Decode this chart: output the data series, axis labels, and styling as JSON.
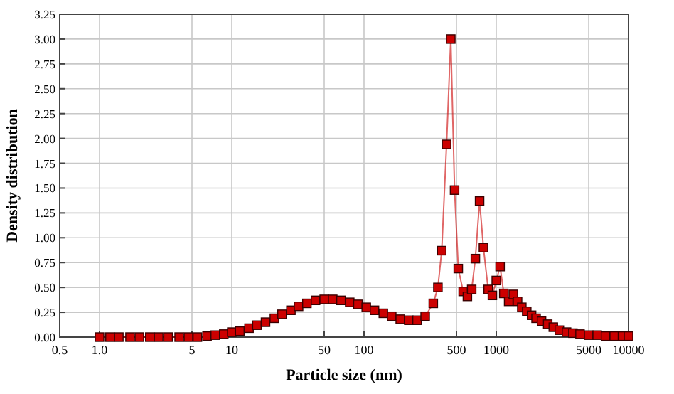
{
  "chart_data": {
    "type": "line",
    "xlabel": "Particle size (nm)",
    "ylabel": "Density distribution",
    "log": "x",
    "grid": true,
    "marker": "square",
    "line_style": "solid",
    "xlim": [
      0.5,
      10000
    ],
    "ylim": [
      0,
      3.25
    ],
    "xticks": [
      0.5,
      {
        "value": 1,
        "label": "1.0"
      },
      5,
      10,
      50,
      100,
      500,
      1000,
      5000,
      10000
    ],
    "yticks": [
      {
        "value": 0,
        "label": "0.00"
      },
      {
        "value": 0.25,
        "label": "0.25"
      },
      {
        "value": 0.5,
        "label": "0.50"
      },
      {
        "value": 0.75,
        "label": "0.75"
      },
      {
        "value": 1,
        "label": "1.00"
      },
      {
        "value": 1.25,
        "label": "1.25"
      },
      {
        "value": 1.5,
        "label": "1.50"
      },
      {
        "value": 1.75,
        "label": "1.75"
      },
      {
        "value": 2,
        "label": "2.00"
      },
      {
        "value": 2.25,
        "label": "2.25"
      },
      {
        "value": 2.5,
        "label": "2.50"
      },
      {
        "value": 2.75,
        "label": "2.75"
      },
      {
        "value": 3,
        "label": "3.00"
      },
      {
        "value": 3.25,
        "label": "3.25"
      }
    ],
    "x": [
      1,
      1.2,
      1.4,
      1.7,
      2,
      2.4,
      2.8,
      3.3,
      4,
      4.7,
      5.5,
      6.5,
      7.5,
      8.7,
      10,
      11.5,
      13.5,
      15.5,
      18,
      21,
      24,
      28,
      32,
      37,
      43,
      50,
      58,
      67,
      78,
      90,
      104,
      120,
      140,
      162,
      188,
      218,
      252,
      290,
      334,
      362,
      387,
      421,
      453,
      484,
      516,
      562,
      605,
      652,
      695,
      748,
      800,
      869,
      935,
      1000,
      1069,
      1140,
      1241,
      1346,
      1449,
      1560,
      1700,
      1850,
      2000,
      2200,
      2450,
      2700,
      3000,
      3400,
      3800,
      4300,
      5000,
      5800,
      6700,
      7800,
      9000,
      10000
    ],
    "series": [
      {
        "color": "#cc0000",
        "values": [
          0,
          0,
          0,
          0,
          0,
          0,
          0,
          0,
          0,
          0,
          0,
          0.01,
          0.02,
          0.03,
          0.05,
          0.06,
          0.09,
          0.12,
          0.15,
          0.19,
          0.23,
          0.27,
          0.31,
          0.34,
          0.37,
          0.38,
          0.38,
          0.37,
          0.35,
          0.33,
          0.3,
          0.27,
          0.24,
          0.21,
          0.18,
          0.17,
          0.17,
          0.21,
          0.34,
          0.5,
          0.87,
          1.94,
          3.0,
          1.48,
          0.69,
          0.46,
          0.41,
          0.48,
          0.79,
          1.37,
          0.9,
          0.48,
          0.42,
          0.57,
          0.71,
          0.44,
          0.36,
          0.43,
          0.36,
          0.3,
          0.26,
          0.22,
          0.19,
          0.16,
          0.13,
          0.1,
          0.07,
          0.05,
          0.04,
          0.03,
          0.02,
          0.02,
          0.01,
          0.01,
          0.01,
          0.01
        ]
      }
    ]
  }
}
